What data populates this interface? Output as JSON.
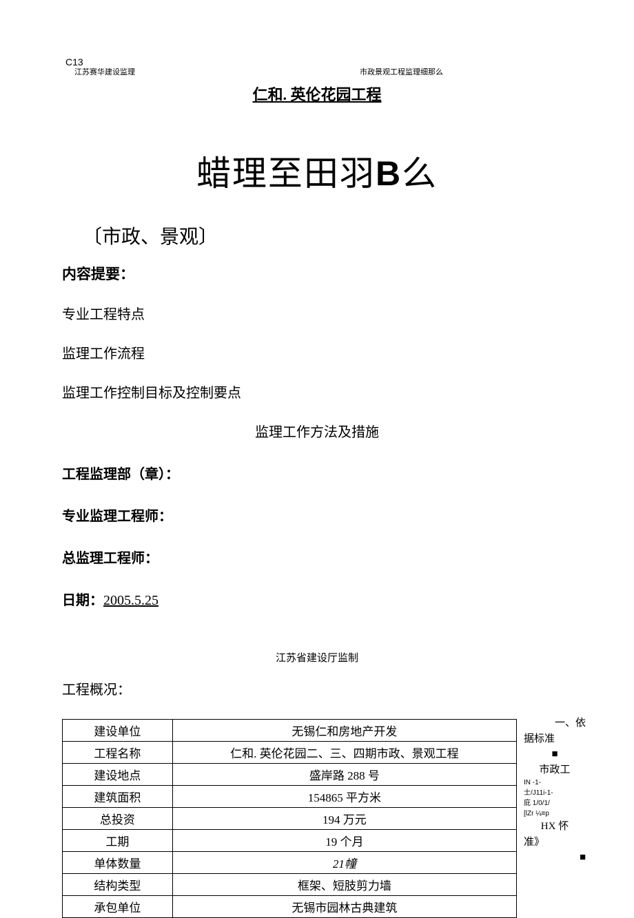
{
  "header": {
    "code": "C13",
    "left": "江苏赛华建设监理",
    "right": "市政景观工程监理细那么"
  },
  "title": "仁和. 英伦花园工程",
  "bigTitle": {
    "prefix": "蜡理至田羽",
    "letter": "B",
    "suffix": "么"
  },
  "subtitle": "〔市政、景观〕",
  "summaryLabel": "内容提要：",
  "contentItems": {
    "item1": "专业工程特点",
    "item2": "监理工作流程",
    "item3": "监理工作控制目标及控制要点",
    "item4": "监理工作方法及措施"
  },
  "signatures": {
    "dept": "工程监理部（章）：",
    "engineer": "专业监理工程师：",
    "chief": "总监理工程师：",
    "dateLabel": "日期：",
    "dateValue": "2005.5.25"
  },
  "footerNote": "江苏省建设厅监制",
  "overviewLabel": "工程概况：",
  "table": {
    "rows": [
      {
        "label": "建设单位",
        "value": "无锡仁和房地产开发"
      },
      {
        "label": "工程名称",
        "value": "仁和. 英伦花园二、三、四期市政、景观工程"
      },
      {
        "label": "建设地点",
        "value": "盛岸路 288 号"
      },
      {
        "label": "建筑面积",
        "value": "154865 平方米"
      },
      {
        "label": "总投资",
        "value": "194 万元"
      },
      {
        "label": "工期",
        "value": "19 个月"
      },
      {
        "label": "单体数量",
        "value": "21幢",
        "italic": true
      },
      {
        "label": "结构类型",
        "value": "框架、短肢剪力墙"
      },
      {
        "label": "承包单位",
        "value": "无锡市园林古典建筑"
      }
    ]
  },
  "sideText": {
    "line1": "一、依",
    "line2": "据标准",
    "sq1": "■",
    "line3": "市政工",
    "frag1": "IN      -1-",
    "frag2": "士/J11i-1-",
    "frag3": "庇  1/0/1/",
    "frag4": "[lZr     ¼≡p",
    "line4": "HX 怀",
    "line5": "准》",
    "sq2": "■"
  }
}
